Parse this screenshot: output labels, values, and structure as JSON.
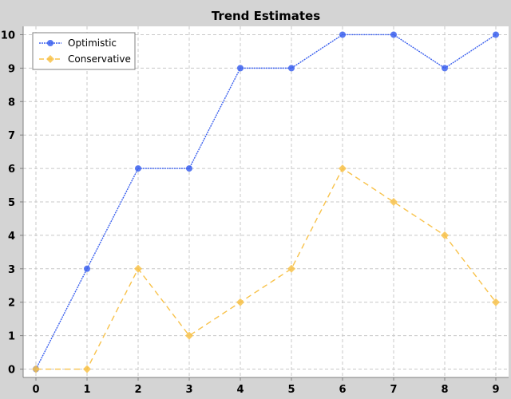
{
  "chart_data": {
    "type": "line",
    "title": "Trend Estimates",
    "xlabel": "",
    "ylabel": "",
    "x": [
      0,
      1,
      2,
      3,
      4,
      5,
      6,
      7,
      8,
      9
    ],
    "xlim": [
      -0.25,
      9.25
    ],
    "ylim": [
      -0.25,
      10.25
    ],
    "x_ticks": [
      0,
      1,
      2,
      3,
      4,
      5,
      6,
      7,
      8,
      9
    ],
    "y_ticks": [
      0,
      1,
      2,
      3,
      4,
      5,
      6,
      7,
      8,
      9,
      10
    ],
    "grid": true,
    "legend_position": "top-left",
    "series": [
      {
        "name": "Optimistic",
        "values": [
          0,
          3,
          6,
          6,
          9,
          9,
          10,
          10,
          9,
          10
        ],
        "color": "#3c61ee",
        "marker": "circle",
        "line_style": "dotted"
      },
      {
        "name": "Conservative",
        "values": [
          0,
          0,
          3,
          1,
          2,
          3,
          6,
          5,
          4,
          2
        ],
        "color": "#f8c24a",
        "marker": "diamond",
        "line_style": "dashed"
      }
    ]
  }
}
